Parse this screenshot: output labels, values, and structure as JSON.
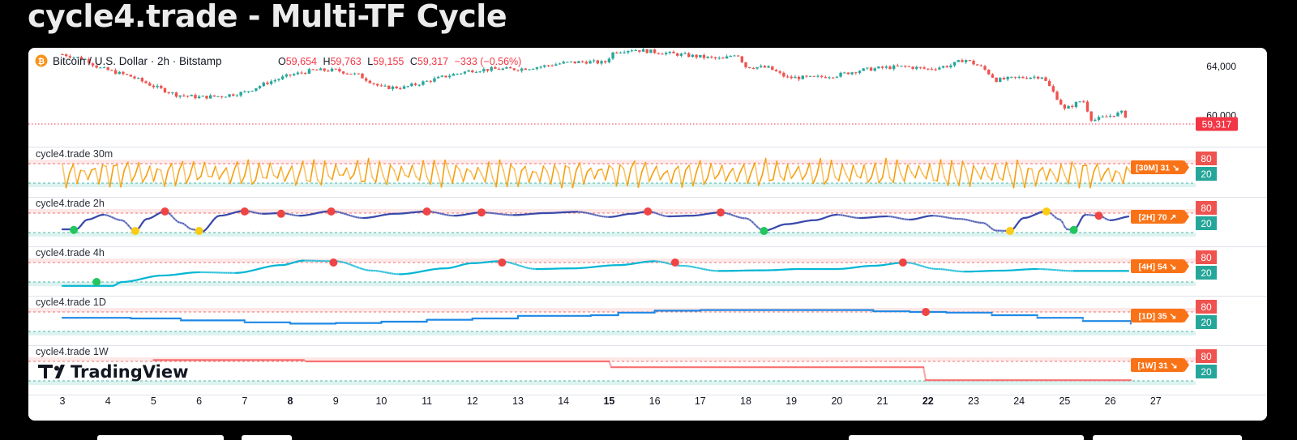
{
  "page": {
    "title": "cycle4.trade - Multi-TF Cycle"
  },
  "chart_data": {
    "type": "line",
    "symbol": "Bitcoin / U.S. Dollar · 2h · Bitstamp",
    "ohlc": {
      "o_label": "O",
      "o": "59,654",
      "h_label": "H",
      "h": "59,763",
      "l_label": "L",
      "l": "59,155",
      "c_label": "C",
      "c": "59,317",
      "change": "−333 (−0.56%)"
    },
    "last_price_label": "59,317",
    "y_ticks": [
      "64,000",
      "60,000"
    ],
    "y_tick_values": [
      64000,
      60000
    ],
    "last_price": 59317,
    "price_ylim": [
      57800,
      65400
    ],
    "x_tick_labels": [
      "3",
      "4",
      "5",
      "6",
      "7",
      "8",
      "9",
      "10",
      "11",
      "12",
      "13",
      "14",
      "15",
      "16",
      "17",
      "18",
      "19",
      "20",
      "21",
      "22",
      "23",
      "24",
      "25",
      "26",
      "27"
    ],
    "x_bold_ticks": [
      "8",
      "15",
      "22"
    ],
    "price_series": [
      {
        "day": 3.0,
        "close": 65000
      },
      {
        "day": 3.5,
        "close": 64600
      },
      {
        "day": 3.8,
        "close": 63900
      },
      {
        "day": 4.0,
        "close": 63700
      },
      {
        "day": 4.5,
        "close": 63200
      },
      {
        "day": 5.0,
        "close": 62400
      },
      {
        "day": 5.5,
        "close": 61700
      },
      {
        "day": 6.0,
        "close": 61500
      },
      {
        "day": 6.5,
        "close": 61600
      },
      {
        "day": 7.0,
        "close": 61900
      },
      {
        "day": 7.5,
        "close": 62700
      },
      {
        "day": 8.0,
        "close": 63300
      },
      {
        "day": 8.5,
        "close": 63700
      },
      {
        "day": 9.0,
        "close": 63700
      },
      {
        "day": 9.5,
        "close": 63300
      },
      {
        "day": 10.0,
        "close": 62300
      },
      {
        "day": 10.5,
        "close": 62300
      },
      {
        "day": 11.0,
        "close": 62800
      },
      {
        "day": 11.5,
        "close": 63300
      },
      {
        "day": 12.0,
        "close": 63700
      },
      {
        "day": 12.5,
        "close": 63800
      },
      {
        "day": 13.0,
        "close": 63800
      },
      {
        "day": 13.5,
        "close": 64000
      },
      {
        "day": 14.0,
        "close": 64300
      },
      {
        "day": 14.5,
        "close": 64400
      },
      {
        "day": 14.9,
        "close": 64300
      },
      {
        "day": 15.1,
        "close": 65200
      },
      {
        "day": 15.5,
        "close": 65400
      },
      {
        "day": 16.0,
        "close": 65200
      },
      {
        "day": 16.5,
        "close": 65000
      },
      {
        "day": 17.0,
        "close": 64800
      },
      {
        "day": 17.5,
        "close": 64600
      },
      {
        "day": 17.8,
        "close": 65100
      },
      {
        "day": 18.0,
        "close": 64000
      },
      {
        "day": 18.5,
        "close": 63900
      },
      {
        "day": 18.9,
        "close": 63100
      },
      {
        "day": 19.5,
        "close": 63100
      },
      {
        "day": 20.0,
        "close": 63300
      },
      {
        "day": 20.5,
        "close": 63700
      },
      {
        "day": 21.0,
        "close": 63900
      },
      {
        "day": 21.5,
        "close": 64000
      },
      {
        "day": 22.0,
        "close": 63800
      },
      {
        "day": 22.5,
        "close": 64100
      },
      {
        "day": 22.8,
        "close": 64600
      },
      {
        "day": 23.2,
        "close": 63900
      },
      {
        "day": 23.5,
        "close": 62900
      },
      {
        "day": 24.0,
        "close": 63100
      },
      {
        "day": 24.5,
        "close": 63200
      },
      {
        "day": 24.7,
        "close": 62200
      },
      {
        "day": 25.0,
        "close": 60500
      },
      {
        "day": 25.4,
        "close": 61300
      },
      {
        "day": 25.6,
        "close": 59600
      },
      {
        "day": 26.0,
        "close": 60000
      },
      {
        "day": 26.3,
        "close": 60300
      },
      {
        "day": 26.4,
        "close": 59317
      }
    ],
    "oscillators": [
      {
        "title": "cycle4.trade 30m",
        "tag": "[30M]  31  ↘",
        "value": 31,
        "upper_label": "80",
        "lower_label": "20",
        "upper": 80,
        "lower": 20,
        "color": "#f59e0b",
        "dots": []
      },
      {
        "title": "cycle4.trade 2h",
        "tag": "[2H]  70  ↗",
        "value": 70,
        "upper_label": "80",
        "lower_label": "20",
        "upper": 80,
        "lower": 20,
        "color": "#3949ab",
        "dots": [
          {
            "day": 3.25,
            "value": 28,
            "signal": "buy",
            "color": "#22c55e"
          },
          {
            "day": 4.6,
            "value": 25,
            "signal": "warn",
            "color": "#facc15"
          },
          {
            "day": 5.25,
            "value": 85,
            "signal": "sell",
            "color": "#ef4444"
          },
          {
            "day": 6.0,
            "value": 25,
            "signal": "warn",
            "color": "#facc15"
          },
          {
            "day": 7.0,
            "value": 85,
            "signal": "sell",
            "color": "#ef4444"
          },
          {
            "day": 7.8,
            "value": 78,
            "signal": "sell",
            "color": "#ef4444"
          },
          {
            "day": 8.9,
            "value": 85,
            "signal": "sell",
            "color": "#ef4444"
          },
          {
            "day": 11.0,
            "value": 85,
            "signal": "sell",
            "color": "#ef4444"
          },
          {
            "day": 12.2,
            "value": 82,
            "signal": "sell",
            "color": "#ef4444"
          },
          {
            "day": 15.85,
            "value": 85,
            "signal": "sell",
            "color": "#ef4444"
          },
          {
            "day": 17.45,
            "value": 82,
            "signal": "sell",
            "color": "#ef4444"
          },
          {
            "day": 18.4,
            "value": 25,
            "signal": "buy",
            "color": "#22c55e"
          },
          {
            "day": 23.8,
            "value": 25,
            "signal": "warn",
            "color": "#facc15"
          },
          {
            "day": 24.6,
            "value": 85,
            "signal": "warn",
            "color": "#facc15"
          },
          {
            "day": 25.2,
            "value": 28,
            "signal": "buy",
            "color": "#22c55e"
          },
          {
            "day": 25.75,
            "value": 72,
            "signal": "sell",
            "color": "#ef4444"
          }
        ]
      },
      {
        "title": "cycle4.trade 4h",
        "tag": "[4H]  54  ↘",
        "value": 54,
        "upper_label": "80",
        "lower_label": "20",
        "upper": 80,
        "lower": 20,
        "color": "#06b6d4",
        "dots": [
          {
            "day": 3.75,
            "value": 20,
            "signal": "buy",
            "color": "#22c55e"
          },
          {
            "day": 8.95,
            "value": 80,
            "signal": "sell",
            "color": "#ef4444"
          },
          {
            "day": 12.65,
            "value": 80,
            "signal": "sell",
            "color": "#ef4444"
          },
          {
            "day": 16.45,
            "value": 80,
            "signal": "sell",
            "color": "#ef4444"
          },
          {
            "day": 21.45,
            "value": 80,
            "signal": "sell",
            "color": "#ef4444"
          }
        ]
      },
      {
        "title": "cycle4.trade 1D",
        "tag": "[1D]  35  ↘",
        "value": 35,
        "upper_label": "80",
        "lower_label": "20",
        "upper": 80,
        "lower": 20,
        "color": "#1e88e5",
        "dots": [
          {
            "day": 21.95,
            "value": 80,
            "signal": "sell",
            "color": "#ef4444"
          }
        ]
      },
      {
        "title": "cycle4.trade 1W",
        "tag": "[1W]  31  ↘",
        "value": 31,
        "upper_label": "80",
        "lower_label": "20",
        "upper": 80,
        "lower": 20,
        "color": "#f87171",
        "dots": []
      }
    ],
    "watermark": "TradingView",
    "colors": {
      "up": "#26a69a",
      "down": "#ef5350",
      "tag": "#f97316",
      "ob_badge": "#ef5350",
      "os_badge": "#26a69a",
      "price_label": "#f23645"
    }
  }
}
